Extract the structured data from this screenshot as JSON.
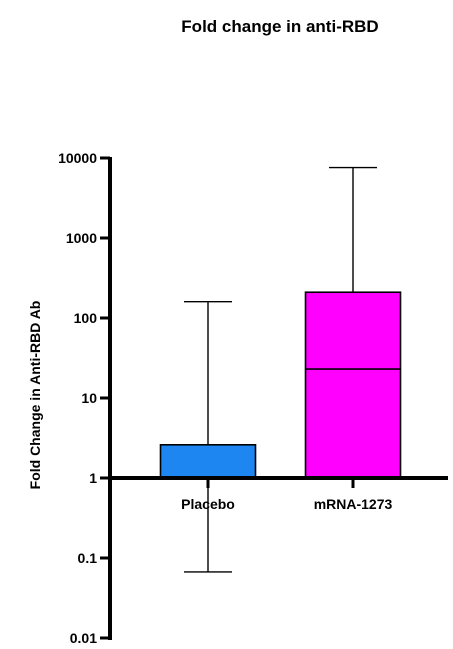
{
  "chart_data": {
    "type": "bar",
    "title": "Fold change in anti-RBD",
    "xlabel": "",
    "ylabel": "Fold Change in Anti-RBD Ab",
    "yscale": "log",
    "ylim": [
      0.01,
      10000
    ],
    "baseline": 1,
    "yticks": [
      {
        "value": 10000,
        "label": "10000"
      },
      {
        "value": 1000,
        "label": "1000"
      },
      {
        "value": 100,
        "label": "100"
      },
      {
        "value": 10,
        "label": "10"
      },
      {
        "value": 1,
        "label": "1"
      },
      {
        "value": 0.1,
        "label": "0.1"
      },
      {
        "value": 0.01,
        "label": "0.01"
      }
    ],
    "categories": [
      "Placebo",
      "mRNA-1273"
    ],
    "bars": [
      {
        "category": "Placebo",
        "value": 2.6,
        "median": null,
        "error_max": 160,
        "error_min": 0.067,
        "color": "#1e86f0"
      },
      {
        "category": "mRNA-1273",
        "value": 210,
        "median": 23,
        "error_max": 7600,
        "error_min": null,
        "color": "#ff00ff"
      }
    ],
    "grid": false,
    "legend": "none"
  }
}
